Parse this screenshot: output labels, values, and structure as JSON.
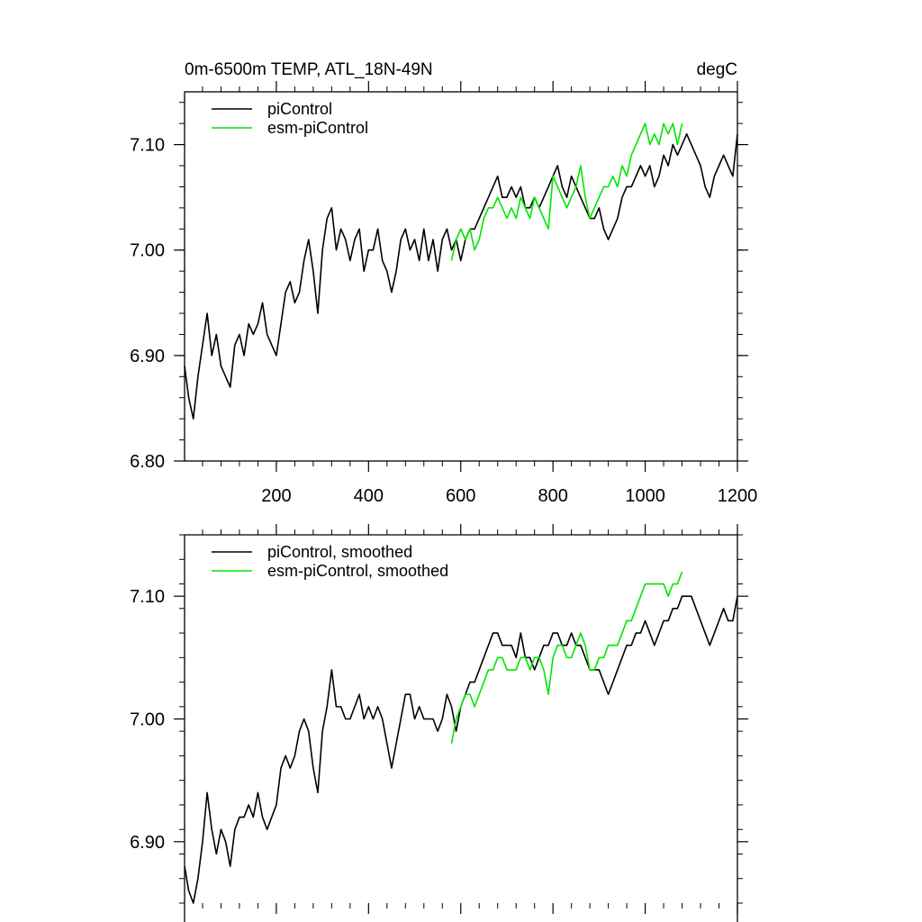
{
  "chart_data": [
    {
      "id": "raw",
      "type": "line",
      "title": "0m-6500m TEMP, ATL_18N-49N",
      "units": "degC",
      "xlabel": "",
      "ylabel": "",
      "xlim": [
        1,
        1200
      ],
      "ylim": [
        6.8,
        7.15
      ],
      "x_ticks": [
        200,
        400,
        600,
        800,
        1000,
        1200
      ],
      "x_tick_labels": [
        "200",
        "400",
        "600",
        "800",
        "1000",
        "1200"
      ],
      "y_ticks": [
        6.8,
        6.9,
        7.0,
        7.1
      ],
      "y_tick_labels": [
        "6.80",
        "6.90",
        "7.00",
        "7.10"
      ],
      "legend_position": "top-left",
      "series": [
        {
          "name": "piControl",
          "color": "#000000",
          "x": [
            1,
            10,
            20,
            30,
            40,
            50,
            60,
            70,
            80,
            90,
            100,
            110,
            120,
            130,
            140,
            150,
            160,
            170,
            180,
            190,
            200,
            210,
            220,
            230,
            240,
            250,
            260,
            270,
            280,
            290,
            300,
            310,
            320,
            330,
            340,
            350,
            360,
            370,
            380,
            390,
            400,
            410,
            420,
            430,
            440,
            450,
            460,
            470,
            480,
            490,
            500,
            510,
            520,
            530,
            540,
            550,
            560,
            570,
            580,
            590,
            600,
            610,
            620,
            630,
            640,
            650,
            660,
            670,
            680,
            690,
            700,
            710,
            720,
            730,
            740,
            750,
            760,
            770,
            780,
            790,
            800,
            810,
            820,
            830,
            840,
            850,
            860,
            870,
            880,
            890,
            900,
            910,
            920,
            930,
            940,
            950,
            960,
            970,
            980,
            990,
            1000,
            1010,
            1020,
            1030,
            1040,
            1050,
            1060,
            1070,
            1080,
            1090,
            1100,
            1110,
            1120,
            1130,
            1140,
            1150,
            1160,
            1170,
            1180,
            1190,
            1200
          ],
          "values": [
            6.89,
            6.86,
            6.84,
            6.88,
            6.91,
            6.94,
            6.9,
            6.92,
            6.89,
            6.88,
            6.87,
            6.91,
            6.92,
            6.9,
            6.93,
            6.92,
            6.93,
            6.95,
            6.92,
            6.91,
            6.9,
            6.93,
            6.96,
            6.97,
            6.95,
            6.96,
            6.99,
            7.01,
            6.98,
            6.94,
            7.0,
            7.03,
            7.04,
            7.0,
            7.02,
            7.01,
            6.99,
            7.01,
            7.02,
            6.98,
            7.0,
            7.0,
            7.02,
            6.99,
            6.98,
            6.96,
            6.98,
            7.01,
            7.02,
            7.0,
            7.01,
            6.99,
            7.02,
            6.99,
            7.01,
            6.98,
            7.01,
            7.02,
            7.0,
            7.01,
            6.99,
            7.01,
            7.02,
            7.02,
            7.03,
            7.04,
            7.05,
            7.06,
            7.07,
            7.05,
            7.05,
            7.06,
            7.05,
            7.06,
            7.04,
            7.04,
            7.05,
            7.04,
            7.05,
            7.06,
            7.07,
            7.08,
            7.06,
            7.05,
            7.07,
            7.06,
            7.05,
            7.04,
            7.03,
            7.03,
            7.04,
            7.02,
            7.01,
            7.02,
            7.03,
            7.05,
            7.06,
            7.06,
            7.07,
            7.08,
            7.07,
            7.08,
            7.06,
            7.07,
            7.09,
            7.08,
            7.1,
            7.09,
            7.1,
            7.11,
            7.1,
            7.09,
            7.08,
            7.06,
            7.05,
            7.07,
            7.08,
            7.09,
            7.08,
            7.07,
            7.11
          ]
        },
        {
          "name": "esm-piControl",
          "color": "#00e600",
          "x": [
            580,
            590,
            600,
            610,
            620,
            630,
            640,
            650,
            660,
            670,
            680,
            690,
            700,
            710,
            720,
            730,
            740,
            750,
            760,
            770,
            780,
            790,
            800,
            810,
            820,
            830,
            840,
            850,
            860,
            870,
            880,
            890,
            900,
            910,
            920,
            930,
            940,
            950,
            960,
            970,
            980,
            990,
            1000,
            1010,
            1020,
            1030,
            1040,
            1050,
            1060,
            1070,
            1080
          ],
          "values": [
            6.99,
            7.01,
            7.02,
            7.01,
            7.02,
            7.0,
            7.01,
            7.03,
            7.04,
            7.04,
            7.05,
            7.04,
            7.03,
            7.04,
            7.03,
            7.05,
            7.04,
            7.03,
            7.05,
            7.04,
            7.03,
            7.02,
            7.07,
            7.06,
            7.05,
            7.04,
            7.05,
            7.06,
            7.08,
            7.05,
            7.03,
            7.04,
            7.05,
            7.06,
            7.06,
            7.07,
            7.06,
            7.08,
            7.07,
            7.09,
            7.1,
            7.11,
            7.12,
            7.1,
            7.11,
            7.1,
            7.12,
            7.11,
            7.12,
            7.1,
            7.12
          ]
        }
      ]
    },
    {
      "id": "smoothed",
      "type": "line",
      "title": "",
      "xlabel": "",
      "ylabel": "",
      "xlim": [
        1,
        1200
      ],
      "ylim": [
        6.85,
        7.15
      ],
      "x_ticks": [
        200,
        400,
        600,
        800,
        1000,
        1200
      ],
      "y_ticks": [
        6.9,
        7.0,
        7.1
      ],
      "y_tick_labels": [
        "6.90",
        "7.00",
        "7.10"
      ],
      "legend_position": "top-left",
      "series": [
        {
          "name": "piControl, smoothed",
          "color": "#000000",
          "x": [
            1,
            10,
            20,
            30,
            40,
            50,
            60,
            70,
            80,
            90,
            100,
            110,
            120,
            130,
            140,
            150,
            160,
            170,
            180,
            190,
            200,
            210,
            220,
            230,
            240,
            250,
            260,
            270,
            280,
            290,
            300,
            310,
            320,
            330,
            340,
            350,
            360,
            370,
            380,
            390,
            400,
            410,
            420,
            430,
            440,
            450,
            460,
            470,
            480,
            490,
            500,
            510,
            520,
            530,
            540,
            550,
            560,
            570,
            580,
            590,
            600,
            610,
            620,
            630,
            640,
            650,
            660,
            670,
            680,
            690,
            700,
            710,
            720,
            730,
            740,
            750,
            760,
            770,
            780,
            790,
            800,
            810,
            820,
            830,
            840,
            850,
            860,
            870,
            880,
            890,
            900,
            910,
            920,
            930,
            940,
            950,
            960,
            970,
            980,
            990,
            1000,
            1010,
            1020,
            1030,
            1040,
            1050,
            1060,
            1070,
            1080,
            1090,
            1100,
            1110,
            1120,
            1130,
            1140,
            1150,
            1160,
            1170,
            1180,
            1190,
            1200
          ],
          "values": [
            6.88,
            6.86,
            6.85,
            6.87,
            6.9,
            6.94,
            6.91,
            6.89,
            6.91,
            6.9,
            6.88,
            6.91,
            6.92,
            6.92,
            6.93,
            6.92,
            6.94,
            6.92,
            6.91,
            6.92,
            6.93,
            6.96,
            6.97,
            6.96,
            6.97,
            6.99,
            7.0,
            6.99,
            6.96,
            6.94,
            6.99,
            7.01,
            7.04,
            7.01,
            7.01,
            7.0,
            7.0,
            7.01,
            7.02,
            7.0,
            7.01,
            7.0,
            7.01,
            7.0,
            6.98,
            6.96,
            6.98,
            7.0,
            7.02,
            7.02,
            7.0,
            7.01,
            7.0,
            7.0,
            7.0,
            6.99,
            7.0,
            7.02,
            7.01,
            6.99,
            7.01,
            7.02,
            7.03,
            7.03,
            7.04,
            7.05,
            7.06,
            7.07,
            7.07,
            7.06,
            7.06,
            7.06,
            7.05,
            7.07,
            7.05,
            7.05,
            7.04,
            7.05,
            7.06,
            7.06,
            7.07,
            7.07,
            7.06,
            7.06,
            7.07,
            7.06,
            7.06,
            7.05,
            7.04,
            7.04,
            7.04,
            7.03,
            7.02,
            7.03,
            7.04,
            7.05,
            7.06,
            7.06,
            7.07,
            7.07,
            7.08,
            7.07,
            7.06,
            7.07,
            7.08,
            7.08,
            7.09,
            7.09,
            7.1,
            7.1,
            7.1,
            7.09,
            7.08,
            7.07,
            7.06,
            7.07,
            7.08,
            7.09,
            7.08,
            7.08,
            7.1
          ]
        },
        {
          "name": "esm-piControl, smoothed",
          "color": "#00e600",
          "x": [
            580,
            590,
            600,
            610,
            620,
            630,
            640,
            650,
            660,
            670,
            680,
            690,
            700,
            710,
            720,
            730,
            740,
            750,
            760,
            770,
            780,
            790,
            800,
            810,
            820,
            830,
            840,
            850,
            860,
            870,
            880,
            890,
            900,
            910,
            920,
            930,
            940,
            950,
            960,
            970,
            980,
            990,
            1000,
            1010,
            1020,
            1030,
            1040,
            1050,
            1060,
            1070,
            1080
          ],
          "values": [
            6.98,
            7.0,
            7.01,
            7.02,
            7.02,
            7.01,
            7.02,
            7.03,
            7.04,
            7.04,
            7.05,
            7.05,
            7.04,
            7.04,
            7.04,
            7.05,
            7.05,
            7.04,
            7.05,
            7.05,
            7.04,
            7.02,
            7.05,
            7.06,
            7.06,
            7.05,
            7.05,
            7.06,
            7.07,
            7.06,
            7.04,
            7.04,
            7.05,
            7.05,
            7.06,
            7.06,
            7.06,
            7.07,
            7.08,
            7.08,
            7.09,
            7.1,
            7.11,
            7.11,
            7.11,
            7.11,
            7.11,
            7.1,
            7.11,
            7.11,
            7.12
          ]
        }
      ]
    }
  ]
}
